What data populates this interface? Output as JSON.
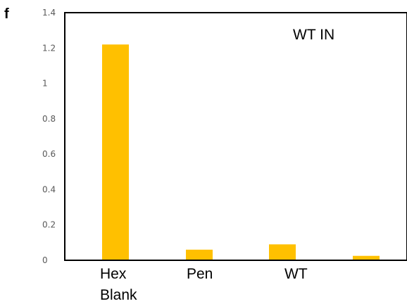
{
  "panel_label": "f",
  "chart_data": {
    "type": "bar",
    "categories": [
      "Hex\nBlank",
      "Pen",
      "WT",
      ""
    ],
    "values": [
      1.22,
      0.06,
      0.09,
      0.025
    ],
    "annotation": "WT IN",
    "title": "",
    "xlabel": "",
    "ylabel": "",
    "ylim": [
      0,
      1.4
    ],
    "yticks": [
      "0",
      "0.2",
      "0.4",
      "0.6",
      "0.8",
      "1",
      "1.2",
      "1.4"
    ],
    "grid": false,
    "bar_color": "#FFC000"
  }
}
